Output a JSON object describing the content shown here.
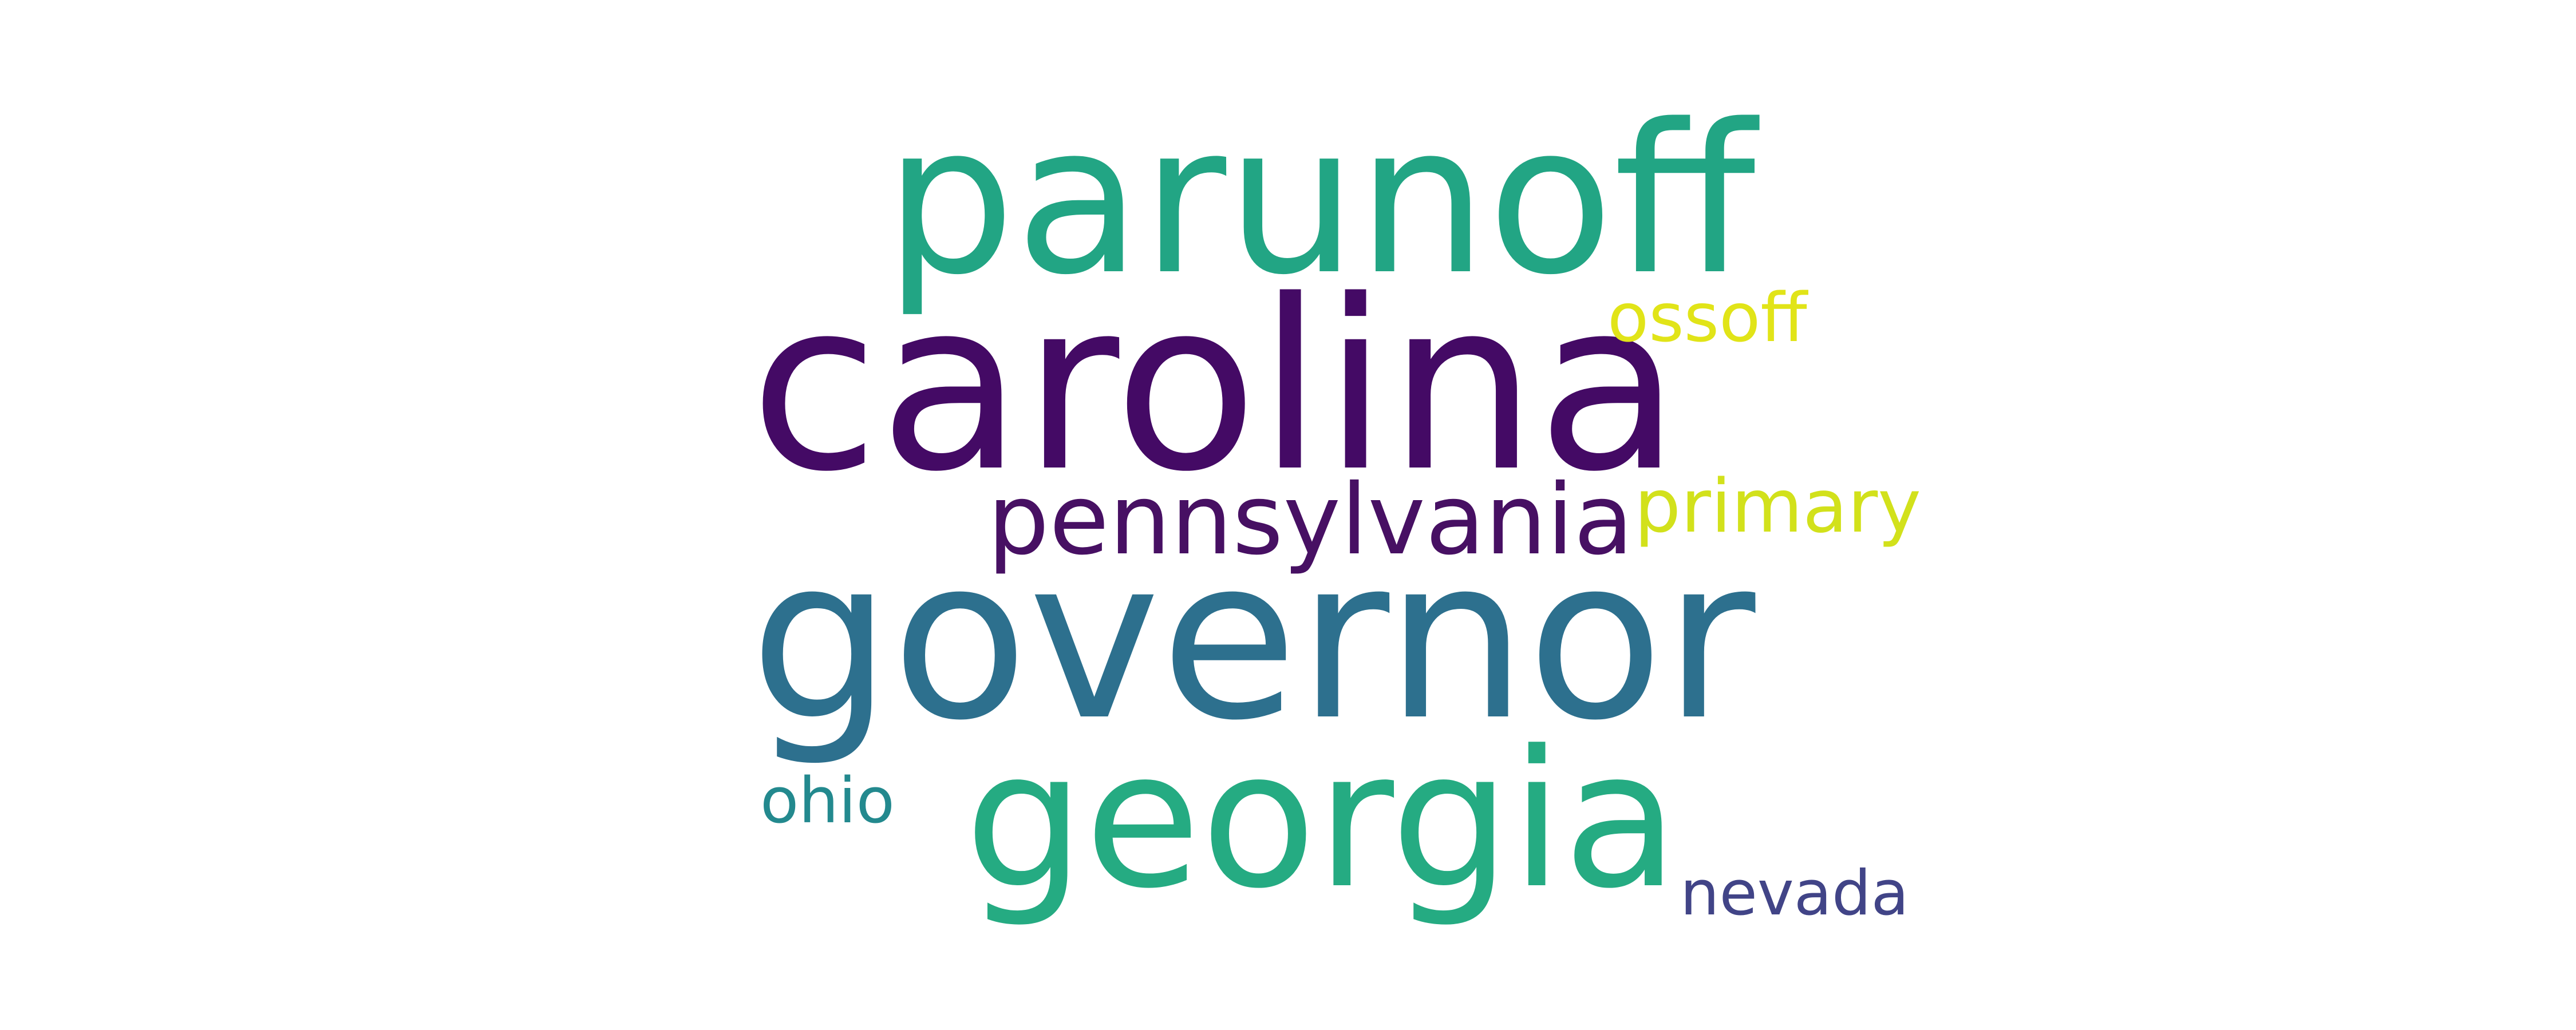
{
  "words": [
    {
      "text": "parunoff",
      "color": "#22a584"
    },
    {
      "text": "carolina",
      "color": "#440a65"
    },
    {
      "text": "ossoff",
      "color": "#e1e418"
    },
    {
      "text": "pennsylvania",
      "color": "#471063"
    },
    {
      "text": "primary",
      "color": "#d2e11b"
    },
    {
      "text": "governor",
      "color": "#2d708e"
    },
    {
      "text": "georgia",
      "color": "#25ab82"
    },
    {
      "text": "ohio",
      "color": "#23898e"
    },
    {
      "text": "nevada",
      "color": "#414487"
    }
  ]
}
